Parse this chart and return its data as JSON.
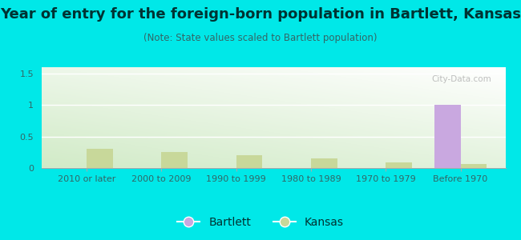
{
  "title": "Year of entry for the foreign-born population in Bartlett, Kansas",
  "subtitle": "(Note: State values scaled to Bartlett population)",
  "categories": [
    "2010 or later",
    "2000 to 2009",
    "1990 to 1999",
    "1980 to 1989",
    "1970 to 1979",
    "Before 1970"
  ],
  "bartlett_values": [
    0,
    0,
    0,
    0,
    0,
    1.0
  ],
  "kansas_values": [
    0.3,
    0.26,
    0.2,
    0.15,
    0.09,
    0.06
  ],
  "bartlett_color": "#c9a8e0",
  "kansas_color": "#c8d89a",
  "background_outer": "#00e8e8",
  "ylim": [
    0,
    1.6
  ],
  "yticks": [
    0,
    0.5,
    1,
    1.5
  ],
  "bar_width": 0.35,
  "title_fontsize": 13,
  "subtitle_fontsize": 8.5,
  "tick_fontsize": 8,
  "legend_fontsize": 10,
  "title_color": "#003333",
  "subtitle_color": "#336666",
  "tick_color": "#336666"
}
